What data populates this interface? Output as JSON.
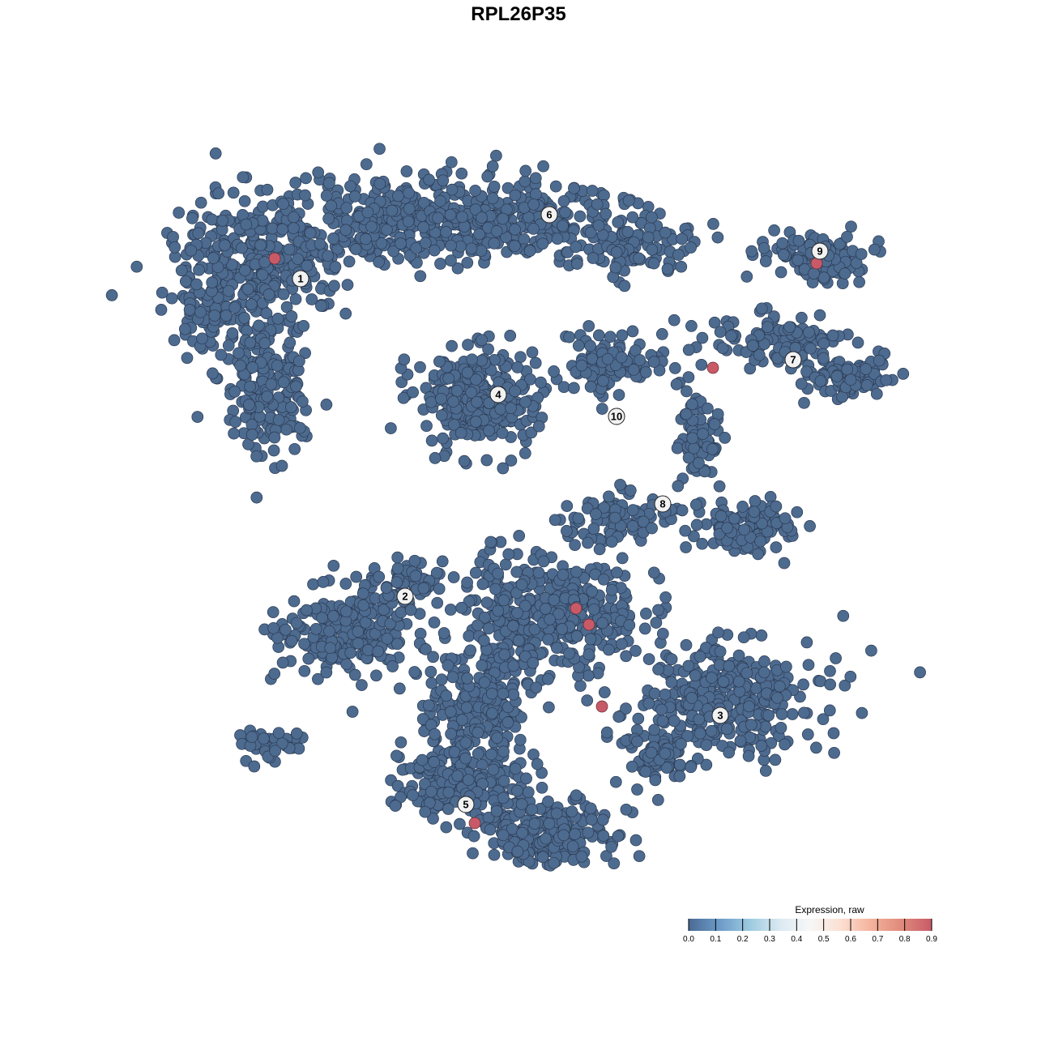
{
  "chart_data": {
    "type": "scatter",
    "title": "RPL26P35",
    "xlabel": "",
    "ylabel": "",
    "grid": false,
    "axes_visible": false,
    "base_color": "#4d6a8f",
    "cluster_labels": [
      {
        "label": "1",
        "x": -13.45,
        "y": 14.8
      },
      {
        "label": "2",
        "x": -7.0,
        "y": -4.8
      },
      {
        "label": "3",
        "x": 12.45,
        "y": -12.15
      },
      {
        "label": "4",
        "x": -1.25,
        "y": 7.65
      },
      {
        "label": "5",
        "x": -3.25,
        "y": -17.65
      },
      {
        "label": "6",
        "x": 1.9,
        "y": 18.75
      },
      {
        "label": "7",
        "x": 16.95,
        "y": 9.8
      },
      {
        "label": "8",
        "x": 8.9,
        "y": 0.9
      },
      {
        "label": "9",
        "x": 18.6,
        "y": 16.5
      },
      {
        "label": "10",
        "x": 6.05,
        "y": 6.3
      }
    ],
    "expressing_cells": [
      {
        "x": -15.05,
        "y": 16.05,
        "value": 0.9
      },
      {
        "x": 12.0,
        "y": 9.3,
        "value": 0.9
      },
      {
        "x": 18.4,
        "y": 15.75,
        "value": 0.9
      },
      {
        "x": 3.55,
        "y": -5.55,
        "value": 0.9
      },
      {
        "x": 4.35,
        "y": -6.55,
        "value": 0.9
      },
      {
        "x": 5.15,
        "y": -11.6,
        "value": 0.9
      },
      {
        "x": -2.7,
        "y": -18.8,
        "value": 0.9
      }
    ],
    "other_cells_value": 0.0,
    "legend": {
      "title": "Expression, raw",
      "placement": "bottom-right",
      "ticks": [
        "0.0",
        "0.1",
        "0.2",
        "0.3",
        "0.4",
        "0.5",
        "0.6",
        "0.7",
        "0.8",
        "0.9"
      ],
      "range": [
        0,
        0.9
      ],
      "colors": [
        "#4a6a94",
        "#6c9ac8",
        "#9ccae0",
        "#dbe9f2",
        "#f7f7f7",
        "#fbe0d2",
        "#f4b39c",
        "#e08a7c",
        "#c85a68"
      ]
    }
  }
}
